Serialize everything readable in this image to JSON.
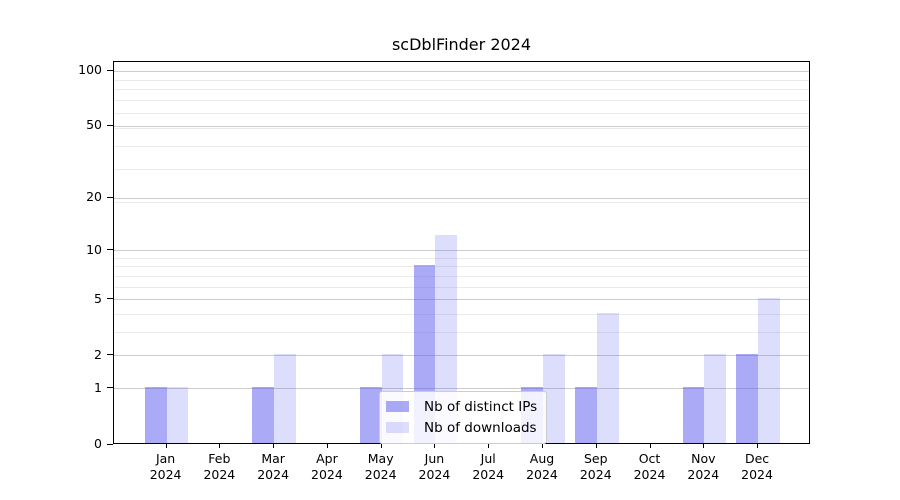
{
  "title": "scDblFinder 2024",
  "chart_data": {
    "type": "bar",
    "title": "scDblFinder 2024",
    "categories": [
      "Jan 2024",
      "Feb 2024",
      "Mar 2024",
      "Apr 2024",
      "May 2024",
      "Jun 2024",
      "Jul 2024",
      "Aug 2024",
      "Sep 2024",
      "Oct 2024",
      "Nov 2024",
      "Dec 2024"
    ],
    "series": [
      {
        "name": "Nb of distinct IPs",
        "color": "rgba(85,85,238,0.5)",
        "color_hex_on_white": "#aaaaf6",
        "values": [
          1,
          0,
          1,
          0,
          1,
          8,
          0,
          1,
          1,
          0,
          1,
          2
        ]
      },
      {
        "name": "Nb of downloads",
        "color": "rgba(85,85,238,0.2)",
        "color_hex_on_white": "#dbdbf8",
        "values": [
          1,
          0,
          2,
          0,
          2,
          12,
          0,
          2,
          4,
          0,
          2,
          5
        ]
      }
    ],
    "xlabel": "",
    "ylabel": "",
    "yscale": "log1p",
    "y_ticks": [
      0,
      1,
      2,
      5,
      10,
      20,
      50,
      100
    ],
    "ylim": [
      0,
      112
    ],
    "grid": true,
    "legend_position": "lower center"
  },
  "colors": {
    "grid_minor": "#ebebeb",
    "grid_major": "#cccccc",
    "spine": "#000000",
    "legend_border": "#cccccc"
  }
}
